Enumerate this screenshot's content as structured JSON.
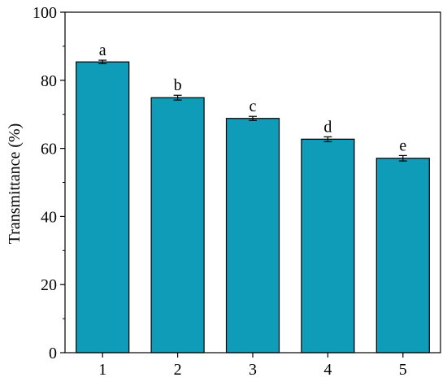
{
  "chart_data": {
    "type": "bar",
    "title": "",
    "xlabel": "",
    "ylabel": "Transmittance (%)",
    "categories": [
      "1",
      "2",
      "3",
      "4",
      "5"
    ],
    "values": [
      85.4,
      74.9,
      68.8,
      62.7,
      57.1
    ],
    "errors": [
      0.5,
      0.7,
      0.6,
      0.7,
      0.8
    ],
    "significance_labels": [
      "a",
      "b",
      "c",
      "d",
      "e"
    ],
    "ylim": [
      0,
      100
    ],
    "yticks": [
      0,
      20,
      40,
      60,
      80,
      100
    ],
    "grid": false,
    "bar_color": "#0e9cb8"
  }
}
